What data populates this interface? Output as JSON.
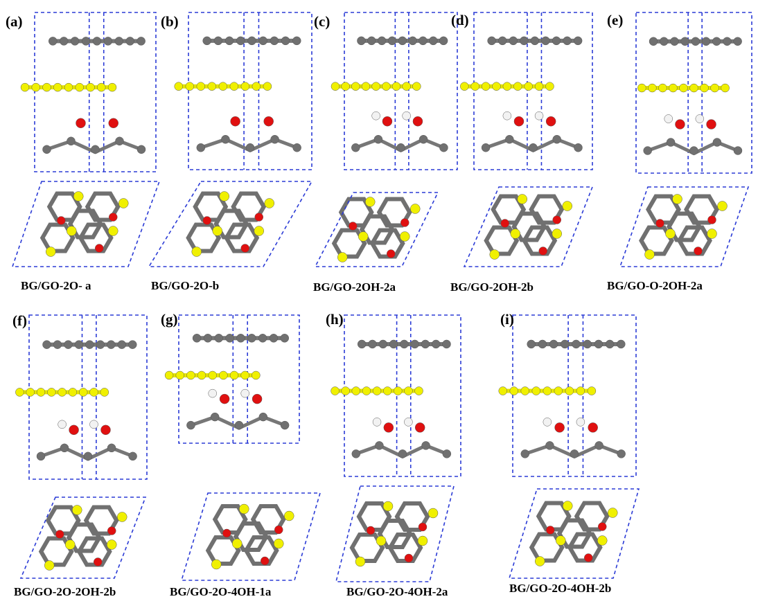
{
  "panels": [
    {
      "label": "(a)",
      "caption": "BG/GO-2O- a"
    },
    {
      "label": "(b)",
      "caption": "BG/GO-2O-b"
    },
    {
      "label": "(c)",
      "caption": "BG/GO-2OH-2a"
    },
    {
      "label": "(d)",
      "caption": "BG/GO-2OH-2b"
    },
    {
      "label": "(e)",
      "caption": "BG/GO-O-2OH-2a"
    },
    {
      "label": "(f)",
      "caption": "BG/GO-2O-2OH-2b"
    },
    {
      "label": "(g)",
      "caption": "BG/GO-2O-4OH-1a"
    },
    {
      "label": "(h)",
      "caption": "BG/GO-2O-4OH-2a"
    },
    {
      "label": "(i)",
      "caption": "BG/GO-2O-4OH-2b"
    }
  ]
}
